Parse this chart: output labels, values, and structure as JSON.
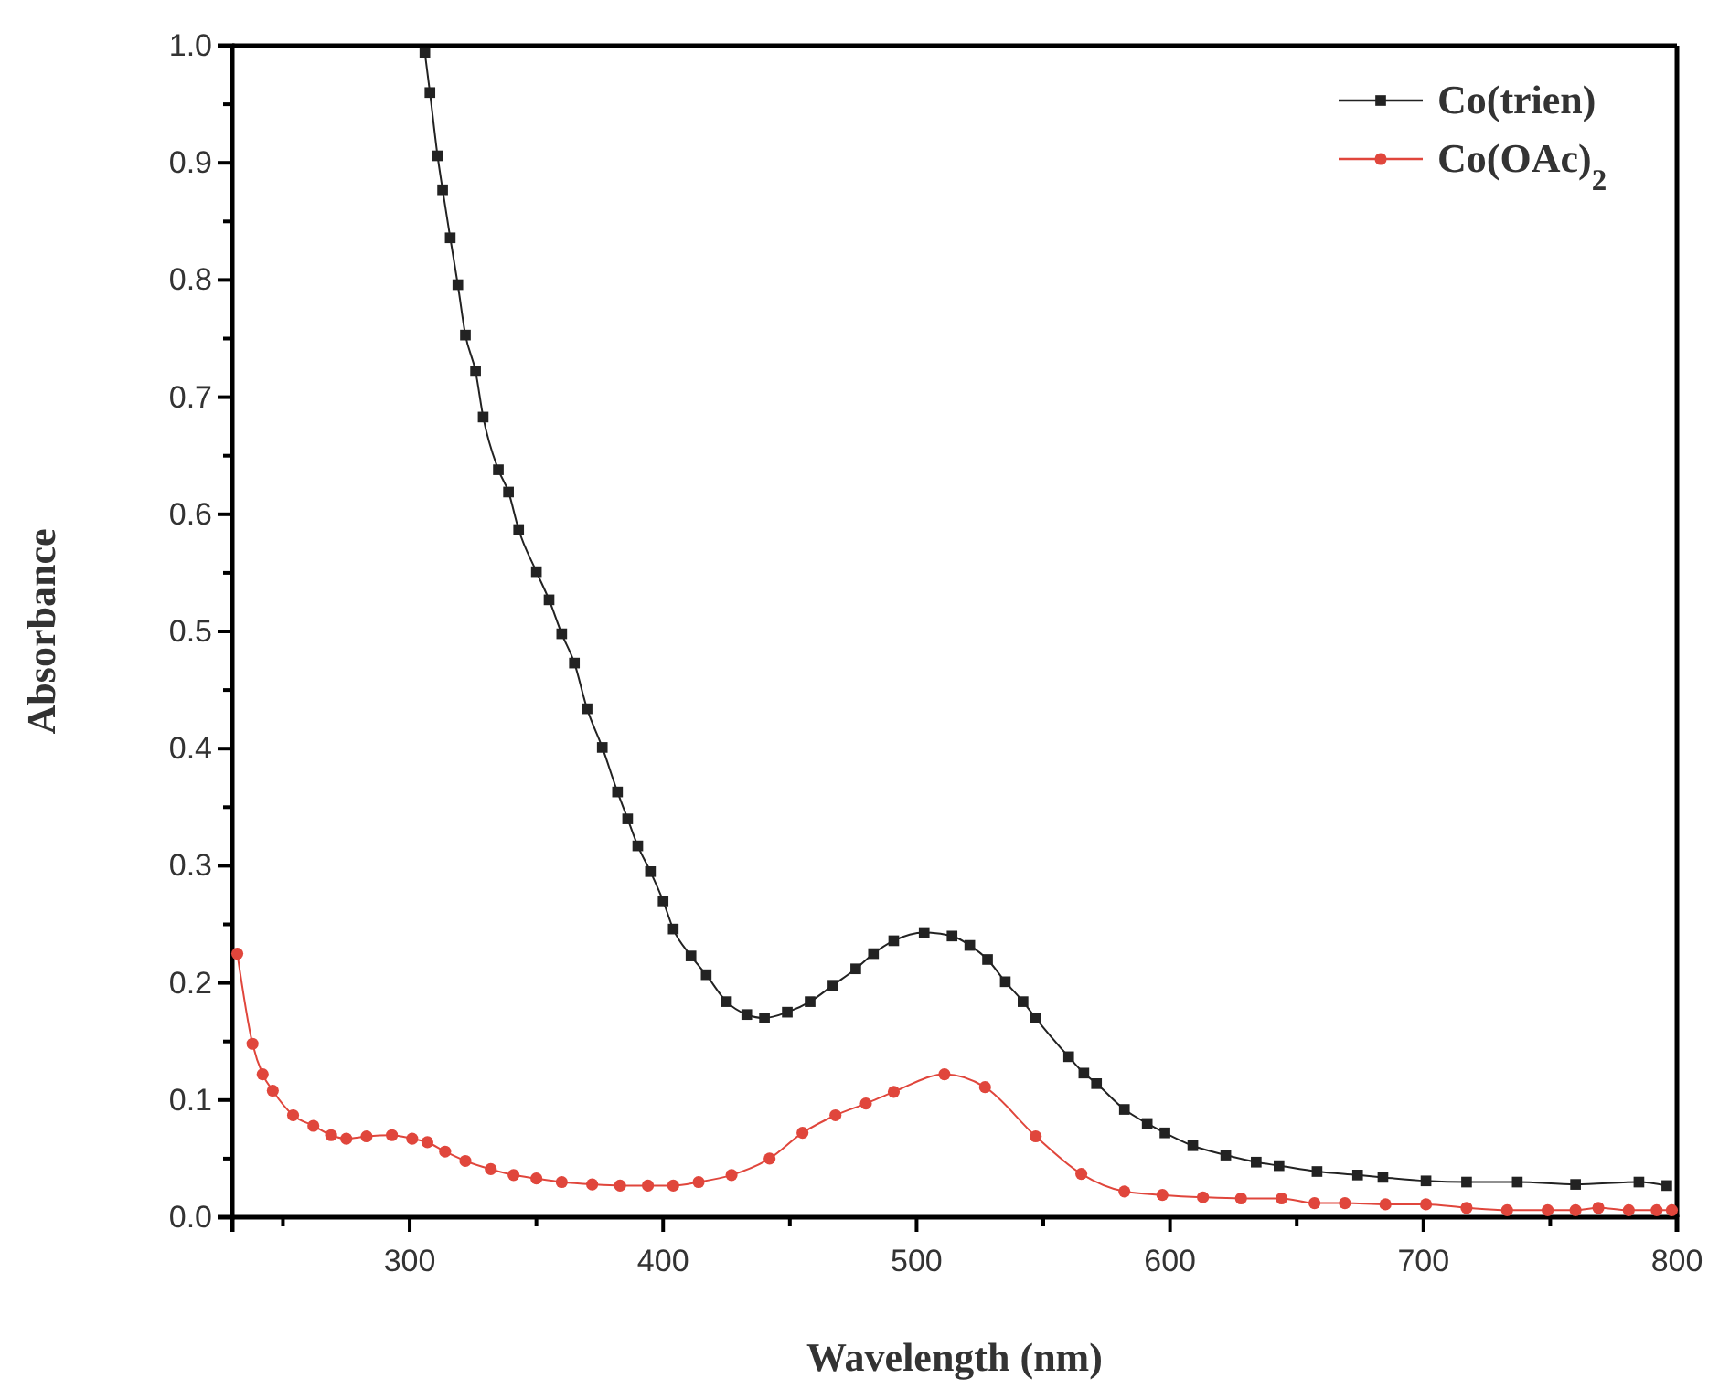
{
  "chart_data": {
    "type": "line",
    "xlabel": "Wavelength (nm)",
    "ylabel": "Absorbance",
    "xlim": [
      230,
      800
    ],
    "ylim": [
      0,
      1.0
    ],
    "xticks": [
      {
        "value": 250,
        "label": null
      },
      300,
      {
        "value": 350,
        "label": null
      },
      400,
      {
        "value": 450,
        "label": null
      },
      500,
      {
        "value": 550,
        "label": null
      },
      600,
      {
        "value": 650,
        "label": null
      },
      700,
      {
        "value": 750,
        "label": null
      },
      800
    ],
    "yticks": [
      {
        "value": 0,
        "label": "0.0"
      },
      {
        "value": 0.05,
        "label": null
      },
      0.1,
      {
        "value": 0.15,
        "label": null
      },
      0.2,
      {
        "value": 0.25,
        "label": null
      },
      0.3,
      {
        "value": 0.35,
        "label": null
      },
      0.4,
      {
        "value": 0.45,
        "label": null
      },
      0.5,
      {
        "value": 0.55,
        "label": null
      },
      0.6,
      {
        "value": 0.65,
        "label": null
      },
      0.7,
      {
        "value": 0.75,
        "label": null
      },
      0.8,
      {
        "value": 0.85,
        "label": null
      },
      0.9,
      {
        "value": 0.95,
        "label": null
      },
      {
        "value": 1.0,
        "label": "1.0"
      }
    ],
    "grid": false,
    "legend": "top right",
    "line_style": "solid",
    "series": [
      {
        "name": "Co(trien)",
        "color": "#222222",
        "marker": "square",
        "x": [
          306,
          308,
          311,
          313,
          316,
          319,
          322,
          326,
          329,
          335,
          339,
          343,
          350,
          355,
          360,
          365,
          370,
          376,
          382,
          386,
          390,
          395,
          400,
          404,
          411,
          417,
          425,
          433,
          440,
          449,
          458,
          467,
          476,
          483,
          491,
          503,
          514,
          521,
          528,
          535,
          542,
          547,
          560,
          566,
          571,
          582,
          591,
          598,
          609,
          622,
          634,
          643,
          658,
          674,
          684,
          701,
          717,
          737,
          760,
          785,
          796
        ],
        "values": [
          0.994,
          0.96,
          0.906,
          0.877,
          0.836,
          0.796,
          0.753,
          0.722,
          0.683,
          0.638,
          0.619,
          0.587,
          0.551,
          0.527,
          0.498,
          0.473,
          0.434,
          0.401,
          0.363,
          0.34,
          0.317,
          0.295,
          0.27,
          0.246,
          0.223,
          0.207,
          0.184,
          0.173,
          0.17,
          0.175,
          0.184,
          0.198,
          0.212,
          0.225,
          0.236,
          0.243,
          0.24,
          0.232,
          0.22,
          0.201,
          0.184,
          0.17,
          0.137,
          0.123,
          0.114,
          0.092,
          0.08,
          0.072,
          0.061,
          0.053,
          0.047,
          0.044,
          0.039,
          0.036,
          0.034,
          0.031,
          0.03,
          0.03,
          0.028,
          0.03,
          0.027
        ]
      },
      {
        "name": "Co(OAc)$_{2}$",
        "color": "#e0463c",
        "marker": "circle",
        "x": [
          232,
          238,
          242,
          246,
          254,
          262,
          269,
          275,
          283,
          293,
          301,
          307,
          314,
          322,
          332,
          341,
          350,
          360,
          372,
          383,
          394,
          404,
          414,
          427,
          442,
          455,
          468,
          480,
          491,
          511,
          527,
          547,
          565,
          582,
          597,
          613,
          628,
          644,
          657,
          669,
          685,
          701,
          717,
          733,
          749,
          760,
          769,
          781,
          792,
          798
        ],
        "values": [
          0.225,
          0.148,
          0.122,
          0.108,
          0.087,
          0.078,
          0.07,
          0.067,
          0.069,
          0.07,
          0.067,
          0.064,
          0.056,
          0.048,
          0.041,
          0.036,
          0.033,
          0.03,
          0.028,
          0.027,
          0.027,
          0.027,
          0.03,
          0.036,
          0.05,
          0.072,
          0.087,
          0.097,
          0.107,
          0.122,
          0.111,
          0.069,
          0.037,
          0.022,
          0.019,
          0.017,
          0.016,
          0.016,
          0.012,
          0.012,
          0.011,
          0.011,
          0.008,
          0.006,
          0.006,
          0.006,
          0.008,
          0.006,
          0.006,
          0.006
        ]
      }
    ]
  }
}
